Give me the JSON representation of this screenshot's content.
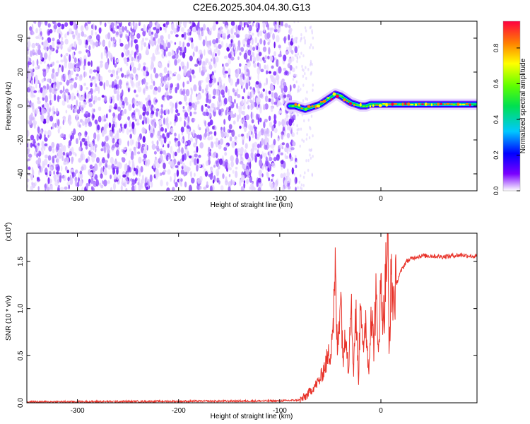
{
  "title": "C2E6.2025.304.04.30.G13",
  "chart_data": [
    {
      "type": "heatmap",
      "xlabel": "Height of straight line (km)",
      "ylabel": "Frequency (Hz)",
      "xlim": [
        -350,
        95
      ],
      "ylim": [
        -50,
        50
      ],
      "xticks": [
        -300,
        -200,
        -100,
        0
      ],
      "yticks": [
        -40,
        -20,
        0,
        20,
        40
      ],
      "noise_region_x": [
        -350,
        -88
      ],
      "signal_line": {
        "x": [
          -90,
          -85,
          -80,
          -75,
          -70,
          -65,
          -60,
          -55,
          -50,
          -45,
          -40,
          -35,
          -30,
          -25,
          -20,
          -15,
          -10,
          -5,
          0,
          10,
          20,
          40,
          60,
          95
        ],
        "y": [
          0,
          0,
          -1,
          -2,
          -1,
          0,
          1,
          3,
          5,
          7,
          6,
          4,
          2,
          1,
          0,
          0,
          1,
          1,
          1,
          1,
          1,
          1,
          1,
          1
        ]
      },
      "colorbar": {
        "label": "Normalized spectral amplitude",
        "range": [
          0,
          0.95
        ],
        "ticks": [
          0.0,
          0.2,
          0.4,
          0.6,
          0.8
        ],
        "tick_labels": [
          "0.0",
          "0.2",
          "0.4",
          "0.6",
          "0.8"
        ]
      }
    },
    {
      "type": "line",
      "xlabel": "Height of straight line (km)",
      "ylabel": "SNR (10 * v/v)",
      "y_multiplier": "(x10",
      "y_multiplier_exp": "4",
      "y_multiplier_close": ")",
      "xlim": [
        -350,
        95
      ],
      "ylim": [
        0,
        1.8
      ],
      "xticks": [
        -300,
        -200,
        -100,
        0
      ],
      "yticks": [
        0.0,
        0.5,
        1.0,
        1.5
      ],
      "ytick_labels": [
        "0.0",
        "0.5",
        "1.0",
        "1.5"
      ],
      "color": "#e8332a",
      "series": [
        {
          "x": [
            -350,
            -100,
            -80,
            -75,
            -70,
            -65,
            -60,
            -55,
            -50,
            -47,
            -45,
            -43,
            -40,
            -37,
            -35,
            -32,
            -30,
            -27,
            -25,
            -22,
            -20,
            -17,
            -15,
            -12,
            -10,
            -7,
            -5,
            -3,
            0,
            3,
            5,
            7,
            8,
            10,
            12,
            15,
            18,
            20,
            25,
            30,
            35,
            40,
            50,
            60,
            70,
            80,
            95
          ],
          "y": [
            0.01,
            0.02,
            0.03,
            0.06,
            0.12,
            0.18,
            0.25,
            0.4,
            0.55,
            0.9,
            1.35,
            0.5,
            1.25,
            0.4,
            0.9,
            0.3,
            1.2,
            0.35,
            1.0,
            0.25,
            1.25,
            0.45,
            0.9,
            0.3,
            1.05,
            0.6,
            1.15,
            0.55,
            1.2,
            0.9,
            1.4,
            1.8,
            0.45,
            1.3,
            1.1,
            1.25,
            1.35,
            1.4,
            1.5,
            1.53,
            1.55,
            1.56,
            1.56,
            1.55,
            1.56,
            1.57,
            1.55
          ]
        }
      ]
    }
  ]
}
